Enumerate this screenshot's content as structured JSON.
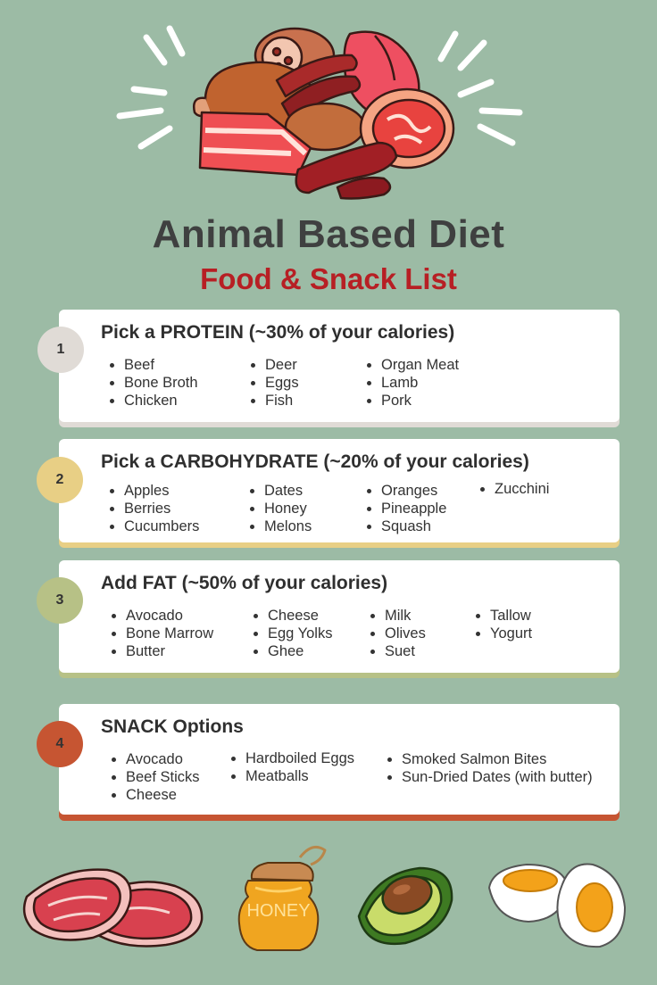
{
  "header": {
    "title": "Animal Based Diet",
    "subtitle": "Food & Snack List"
  },
  "colors": {
    "background": "#9cbba5",
    "title": "#3f4040",
    "subtitle": "#b71f24",
    "badge_protein": "#e0dbd6",
    "badge_carb": "#e8cf85",
    "badge_fat": "#b7c186",
    "badge_snack": "#c65532"
  },
  "sections": [
    {
      "number": "1",
      "title": "Pick a PROTEIN (~30% of your calories)",
      "columns": [
        [
          "Beef",
          "Bone Broth",
          "Chicken"
        ],
        [
          "Deer",
          "Eggs",
          "Fish"
        ],
        [
          "Organ Meat",
          "Lamb",
          "Pork"
        ]
      ]
    },
    {
      "number": "2",
      "title": "Pick a CARBOHYDRATE (~20% of your calories)",
      "columns": [
        [
          "Apples",
          "Berries",
          "Cucumbers"
        ],
        [
          "Dates",
          "Honey",
          "Melons"
        ],
        [
          "Oranges",
          "Pineapple",
          "Squash"
        ],
        [
          "Zucchini"
        ]
      ]
    },
    {
      "number": "3",
      "title": "Add FAT (~50% of your calories)",
      "columns": [
        [
          "Avocado",
          "Bone Marrow",
          "Butter"
        ],
        [
          "Cheese",
          "Egg Yolks",
          "Ghee"
        ],
        [
          "Milk",
          "Olives",
          "Suet"
        ],
        [
          "Tallow",
          "Yogurt"
        ]
      ]
    },
    {
      "number": "4",
      "title": "SNACK Options",
      "columns": [
        [
          "Avocado",
          "Beef Sticks",
          "Cheese"
        ],
        [
          "Hardboiled Eggs",
          "Meatballs"
        ],
        [
          "Smoked Salmon Bites",
          "Sun-Dried Dates (with butter)"
        ]
      ]
    }
  ],
  "illustrations": {
    "hero": "meat-assortment-icon",
    "honey_label": "HONEY",
    "items": [
      "steak-icon",
      "honey-jar-icon",
      "avocado-icon",
      "boiled-egg-icon"
    ]
  }
}
